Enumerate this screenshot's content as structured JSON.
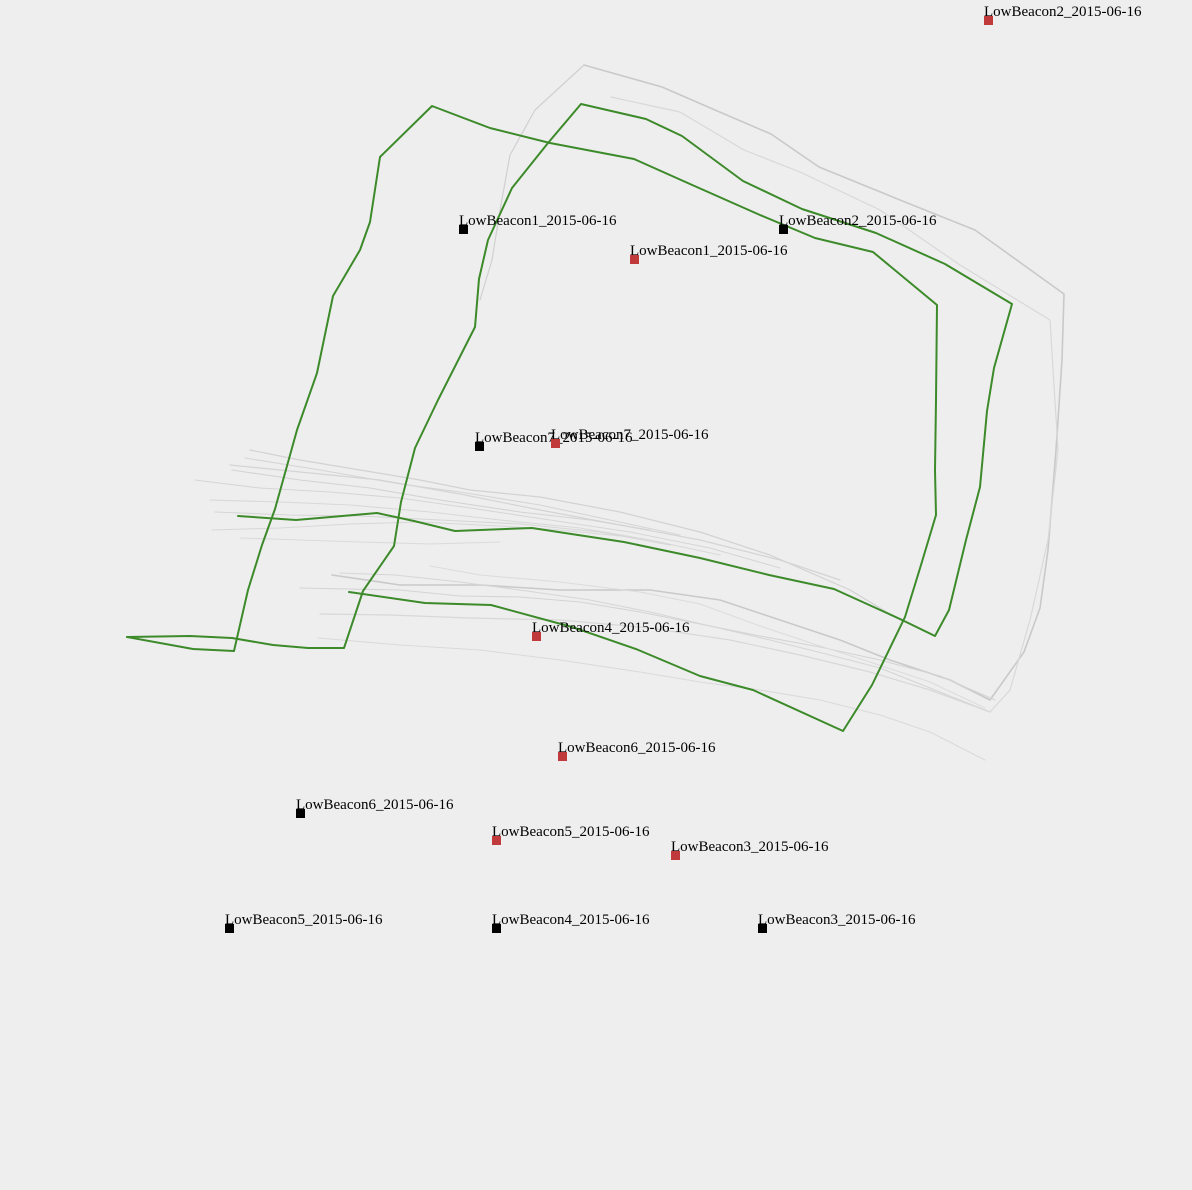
{
  "colors": {
    "background": "#eeeeee",
    "track_primary": "#3c8a2a",
    "track_secondary": "#c9c9c9",
    "track_tertiary": "#d8d8d8",
    "beacon_black": "#000000",
    "beacon_red": "#c0393b"
  },
  "beacons": [
    {
      "id": "black-1",
      "label": "LowBeacon1_2015-06-16",
      "color": "black"
    },
    {
      "id": "black-2",
      "label": "LowBeacon2_2015-06-16",
      "color": "black"
    },
    {
      "id": "black-7",
      "label": "LowBeacon7_2015-06-16",
      "color": "black"
    },
    {
      "id": "black-6",
      "label": "LowBeacon6_2015-06-16",
      "color": "black"
    },
    {
      "id": "black-5",
      "label": "LowBeacon5_2015-06-16",
      "color": "black"
    },
    {
      "id": "black-4",
      "label": "LowBeacon4_2015-06-16",
      "color": "black"
    },
    {
      "id": "black-3",
      "label": "LowBeacon3_2015-06-16",
      "color": "black"
    },
    {
      "id": "red-2",
      "label": "LowBeacon2_2015-06-16",
      "color": "red"
    },
    {
      "id": "red-1",
      "label": "LowBeacon1_2015-06-16",
      "color": "red"
    },
    {
      "id": "red-7",
      "label": "LowBeacon7_2015-06-16",
      "color": "red"
    },
    {
      "id": "red-4",
      "label": "LowBeacon4_2015-06-16",
      "color": "red"
    },
    {
      "id": "red-6",
      "label": "LowBeacon6_2015-06-16",
      "color": "red"
    },
    {
      "id": "red-5",
      "label": "LowBeacon5_2015-06-16",
      "color": "red"
    },
    {
      "id": "red-3",
      "label": "LowBeacon3_2015-06-16",
      "color": "red"
    }
  ]
}
